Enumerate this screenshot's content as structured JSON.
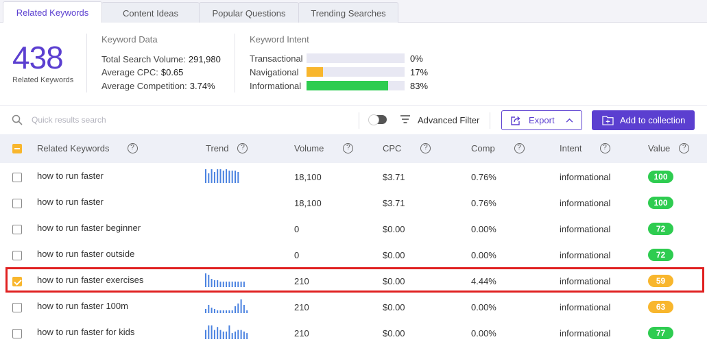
{
  "tabs": [
    {
      "label": "Related Keywords",
      "active": true
    },
    {
      "label": "Content Ideas",
      "active": false
    },
    {
      "label": "Popular Questions",
      "active": false
    },
    {
      "label": "Trending Searches",
      "active": false
    }
  ],
  "summary": {
    "total_keywords": "438",
    "total_label": "Related Keywords",
    "keyword_data": {
      "title": "Keyword Data",
      "total_search_volume_label": "Total Search Volume:",
      "total_search_volume": "291,980",
      "average_cpc_label": "Average CPC:",
      "average_cpc": "$0.65",
      "average_competition_label": "Average Competition:",
      "average_competition": "3.74%"
    },
    "keyword_intent": {
      "title": "Keyword Intent",
      "items": [
        {
          "label": "Transactional",
          "percent": "0%",
          "fraction": 0.0,
          "color": "#2ecc50"
        },
        {
          "label": "Navigational",
          "percent": "17%",
          "fraction": 0.17,
          "color": "#f8b62d"
        },
        {
          "label": "Informational",
          "percent": "83%",
          "fraction": 0.83,
          "color": "#2ecc50"
        }
      ]
    }
  },
  "toolbar": {
    "search_placeholder": "Quick results search",
    "search_value": "",
    "advanced_filter_label": "Advanced Filter",
    "advanced_filter_on": false,
    "export_label": "Export",
    "add_to_collection_label": "Add to collection"
  },
  "table": {
    "columns": {
      "keyword": "Related Keywords",
      "trend": "Trend",
      "volume": "Volume",
      "cpc": "CPC",
      "comp": "Comp",
      "intent": "Intent",
      "value": "Value"
    },
    "rows": [
      {
        "keyword": "how to run faster",
        "trend": [
          10,
          7,
          10,
          8,
          10,
          10,
          9,
          10,
          9,
          9,
          9,
          8
        ],
        "volume": "18,100",
        "cpc": "$3.71",
        "comp": "0.76%",
        "intent": "informational",
        "value": "100",
        "value_color": "#2ecc50",
        "checked": false
      },
      {
        "keyword": "how to run faster",
        "trend": [],
        "volume": "18,100",
        "cpc": "$3.71",
        "comp": "0.76%",
        "intent": "informational",
        "value": "100",
        "value_color": "#2ecc50",
        "checked": false
      },
      {
        "keyword": "how to run faster beginner",
        "trend": [],
        "volume": "0",
        "cpc": "$0.00",
        "comp": "0.00%",
        "intent": "informational",
        "value": "72",
        "value_color": "#2ecc50",
        "checked": false
      },
      {
        "keyword": "how to run faster outside",
        "trend": [],
        "volume": "0",
        "cpc": "$0.00",
        "comp": "0.00%",
        "intent": "informational",
        "value": "72",
        "value_color": "#2ecc50",
        "checked": false
      },
      {
        "keyword": "how to run faster exercises",
        "trend": [
          10,
          9,
          6,
          5,
          5,
          4,
          4,
          4,
          4,
          4,
          4,
          4,
          4,
          4
        ],
        "volume": "210",
        "cpc": "$0.00",
        "comp": "4.44%",
        "intent": "informational",
        "value": "59",
        "value_color": "#f8b62d",
        "checked": true
      },
      {
        "keyword": "how to run faster 100m",
        "trend": [
          3,
          6,
          4,
          3,
          2,
          2,
          2,
          2,
          2,
          2,
          5,
          7,
          10,
          6,
          2
        ],
        "volume": "210",
        "cpc": "$0.00",
        "comp": "0.00%",
        "intent": "informational",
        "value": "63",
        "value_color": "#f8b62d",
        "checked": false
      },
      {
        "keyword": "how to run faster for kids",
        "trend": [
          6,
          9,
          9,
          6,
          8,
          6,
          5,
          5,
          9,
          4,
          5,
          6,
          6,
          5,
          4
        ],
        "volume": "210",
        "cpc": "$0.00",
        "comp": "0.00%",
        "intent": "informational",
        "value": "77",
        "value_color": "#2ecc50",
        "checked": false
      }
    ]
  }
}
